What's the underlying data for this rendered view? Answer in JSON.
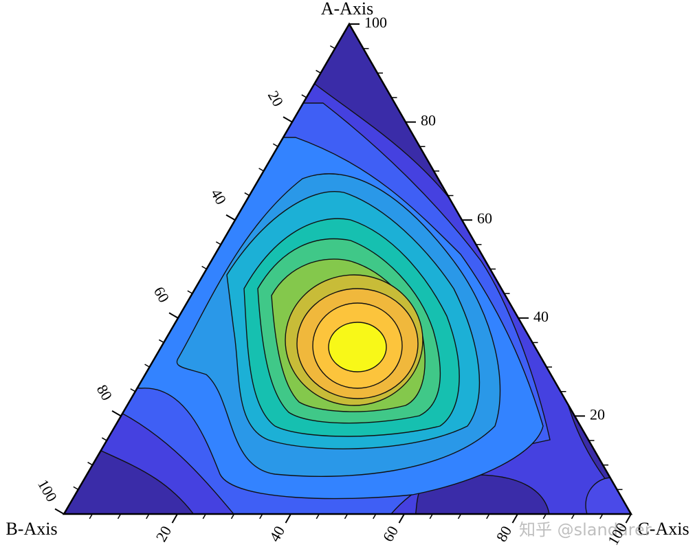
{
  "chart_data": {
    "type": "ternary",
    "a_axis": {
      "label": "A-Axis",
      "lim": [
        0,
        100
      ],
      "ticks": [
        20,
        40,
        60,
        80,
        100
      ]
    },
    "b_axis": {
      "label": "B-Axis",
      "lim": [
        0,
        100
      ],
      "ticks": [
        20,
        40,
        60,
        80,
        100
      ]
    },
    "c_axis": {
      "label": "C-Axis",
      "lim": [
        0,
        100
      ],
      "ticks": [
        20,
        40,
        60,
        80,
        100
      ]
    }
  },
  "watermark": "知乎 @slandarer"
}
